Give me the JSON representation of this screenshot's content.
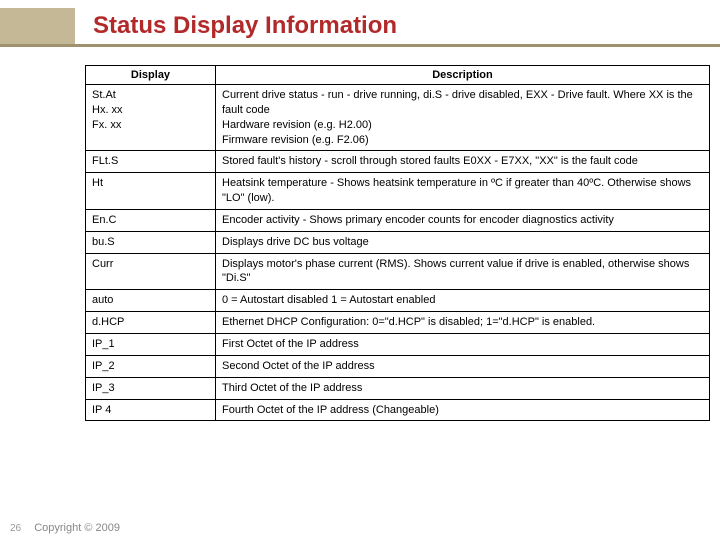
{
  "title": "Status Display Information",
  "columns": [
    "Display",
    "Description"
  ],
  "rows": [
    {
      "display": "St.At\nHx. xx\nFx. xx",
      "description": "Current drive status - run - drive running, di.S - drive disabled,  EXX - Drive fault. Where XX is the fault code\nHardware revision (e.g. H2.00)\nFirmware revision (e.g. F2.06)"
    },
    {
      "display": "FLt.S",
      "description": "Stored fault's history - scroll through stored faults E0XX - E7XX, \"XX\" is the fault code"
    },
    {
      "display": "Ht",
      "description": "Heatsink temperature - Shows heatsink temperature in ºC if greater than 40ºC. Otherwise shows \"LO\" (low)."
    },
    {
      "display": "En.C",
      "description": "Encoder activity - Shows primary encoder counts for encoder diagnostics activity"
    },
    {
      "display": "bu.S",
      "description": "Displays drive DC bus voltage"
    },
    {
      "display": "Curr",
      "description": "Displays motor's phase current (RMS).  Shows current value if drive is enabled, otherwise shows \"Di.S\""
    },
    {
      "display": "auto",
      "description": "0 = Autostart disabled 1 = Autostart enabled"
    },
    {
      "display": "d.HCP",
      "description": "Ethernet DHCP Configuration: 0=\"d.HCP\" is disabled; 1=\"d.HCP\" is enabled."
    },
    {
      "display": "IP_1",
      "description": "First Octet of the IP address"
    },
    {
      "display": "IP_2",
      "description": "Second Octet of the IP address"
    },
    {
      "display": "IP_3",
      "description": "Third Octet of the IP address"
    },
    {
      "display": "IP 4",
      "description": "Fourth Octet of the IP address (Changeable)"
    }
  ],
  "footer": {
    "page": "26",
    "copyright": "Copyright © 2009"
  },
  "colors": {
    "title": "#b22929",
    "accent_block": "#c4b896",
    "header_rule": "#a0926c",
    "border": "#000000",
    "footer_text": "#888888"
  },
  "fonts": {
    "title_size": 24,
    "body_size": 11
  }
}
